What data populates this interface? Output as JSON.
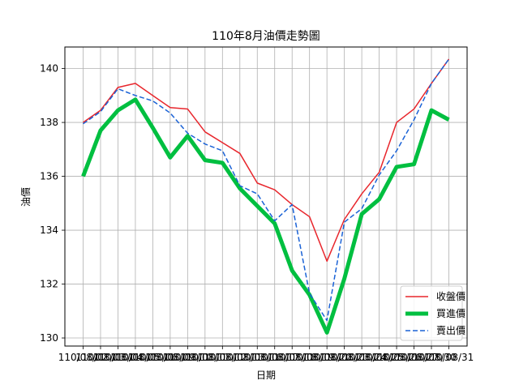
{
  "chart_data": {
    "type": "line",
    "title": "110年8月油價走勢圖",
    "xlabel": "日期",
    "ylabel": "油價",
    "categories": [
      "110/08/02",
      "110/08/03",
      "110/08/04",
      "110/08/05",
      "110/08/06",
      "110/08/09",
      "110/08/10",
      "110/08/11",
      "110/08/12",
      "110/08/13",
      "110/08/16",
      "110/08/17",
      "110/08/18",
      "110/08/19",
      "110/08/20",
      "110/08/23",
      "110/08/24",
      "110/08/25",
      "110/08/26",
      "110/08/27",
      "110/08/30",
      "110/08/31"
    ],
    "tick_labels": [
      "110/08/02",
      "110/08/03",
      "110/08/04",
      "110/08/05",
      "110/08/06",
      "110/08/09",
      "110/08/10",
      "110/08/11",
      "110/08/12",
      "110/08/13",
      "110/08/16",
      "110/08/17",
      "110/08/18",
      "110/08/19",
      "110/08/20",
      "110/08/23",
      "110/08/24",
      "110/08/25",
      "110/08/26",
      "110/08/27",
      "110/08/30",
      "110/08/31"
    ],
    "series": [
      {
        "name": "收盤價",
        "color": "#e8262c",
        "style": "solid",
        "width": 1.5,
        "values": [
          138.0,
          138.45,
          139.3,
          139.45,
          139.0,
          138.55,
          138.5,
          137.65,
          137.25,
          136.85,
          135.75,
          135.5,
          134.95,
          134.5,
          132.85,
          134.4,
          135.35,
          136.15,
          138.0,
          138.5,
          139.45,
          140.35
        ]
      },
      {
        "name": "買進價",
        "color": "#00bf40",
        "style": "solid",
        "width": 5,
        "values": [
          136.0,
          137.7,
          138.45,
          138.85,
          137.8,
          136.7,
          137.5,
          136.6,
          136.5,
          135.55,
          134.9,
          134.25,
          132.5,
          131.6,
          130.2,
          132.2,
          134.6,
          135.15,
          136.35,
          136.45,
          138.45,
          138.1
        ]
      },
      {
        "name": "賣出價",
        "color": "#1a62d6",
        "style": "dashed",
        "width": 1.5,
        "values": [
          137.95,
          138.4,
          139.25,
          139.0,
          138.8,
          138.35,
          137.6,
          137.2,
          136.95,
          135.65,
          135.35,
          134.35,
          134.95,
          131.65,
          130.65,
          134.3,
          134.8,
          136.05,
          136.95,
          138.1,
          139.45,
          140.35
        ]
      }
    ],
    "ylim": [
      129.7,
      140.8
    ],
    "yticks": [
      130,
      132,
      134,
      136,
      138,
      140
    ],
    "grid": true,
    "legend_position": "lower-right"
  }
}
